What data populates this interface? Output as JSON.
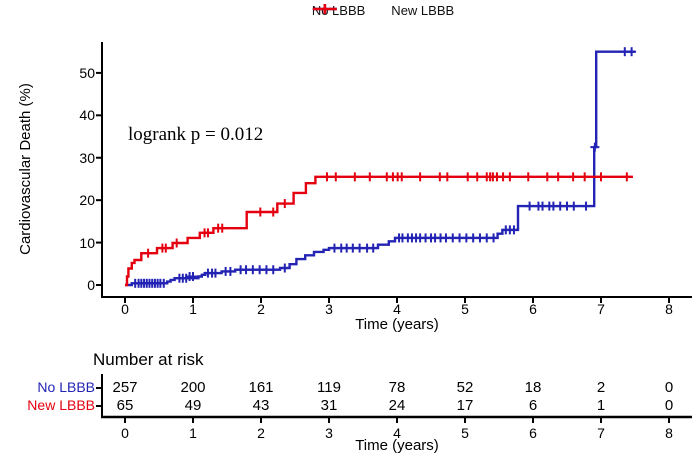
{
  "colors": {
    "no_lbbb": "#2323b4",
    "new_lbbb": "#e4000f",
    "axis": "#000000"
  },
  "legend": {
    "items": [
      {
        "label": "No LBBB",
        "color": "#2323b4"
      },
      {
        "label": "New LBBB",
        "color": "#e4000f"
      }
    ]
  },
  "annotation": {
    "text": "logrank p = 0.012"
  },
  "axes": {
    "y_label": "Cardiovascular Death (%)",
    "x_label": "Time (years)",
    "y_ticks": [
      0,
      10,
      20,
      30,
      40,
      50
    ],
    "x_ticks": [
      0,
      1,
      2,
      3,
      4,
      5,
      6,
      7,
      8
    ]
  },
  "risk_table": {
    "title": "Number at risk",
    "x_label": "Time (years)",
    "x_ticks": [
      0,
      1,
      2,
      3,
      4,
      5,
      6,
      7,
      8
    ],
    "rows": [
      {
        "label": "No LBBB",
        "color": "#2323b4",
        "values": [
          257,
          200,
          161,
          119,
          78,
          52,
          18,
          2,
          0
        ]
      },
      {
        "label": "New LBBB",
        "color": "#e4000f",
        "values": [
          65,
          49,
          43,
          31,
          24,
          17,
          6,
          1,
          0
        ]
      }
    ]
  },
  "chart_data": {
    "type": "line",
    "subtype": "kaplan-meier-step",
    "title": "",
    "xlabel": "Time (years)",
    "ylabel": "Cardiovascular Death (%)",
    "xlim": [
      0,
      8
    ],
    "ylim": [
      0,
      55
    ],
    "grid": false,
    "legend_position": "top",
    "series": [
      {
        "name": "No LBBB",
        "color": "#2323b4",
        "steps": [
          [
            0,
            0
          ],
          [
            0.1,
            0.4
          ],
          [
            0.62,
            0.8
          ],
          [
            0.67,
            1.2
          ],
          [
            0.73,
            1.6
          ],
          [
            1.08,
            2.0
          ],
          [
            1.13,
            2.4
          ],
          [
            1.18,
            2.8
          ],
          [
            1.42,
            3.2
          ],
          [
            1.62,
            3.6
          ],
          [
            2.28,
            4.0
          ],
          [
            2.42,
            4.9
          ],
          [
            2.52,
            6.1
          ],
          [
            2.65,
            7.0
          ],
          [
            2.78,
            7.8
          ],
          [
            2.92,
            8.3
          ],
          [
            3.0,
            8.7
          ],
          [
            3.72,
            9.5
          ],
          [
            3.88,
            10.3
          ],
          [
            3.97,
            11.1
          ],
          [
            5.48,
            12.1
          ],
          [
            5.55,
            13.0
          ],
          [
            5.78,
            18.6
          ],
          [
            6.9,
            32.5
          ],
          [
            6.93,
            55.0
          ],
          [
            7.5,
            55.0
          ]
        ],
        "censors": [
          [
            0.15,
            0.4
          ],
          [
            0.2,
            0.4
          ],
          [
            0.24,
            0.4
          ],
          [
            0.28,
            0.4
          ],
          [
            0.32,
            0.4
          ],
          [
            0.36,
            0.4
          ],
          [
            0.4,
            0.4
          ],
          [
            0.44,
            0.4
          ],
          [
            0.48,
            0.4
          ],
          [
            0.52,
            0.4
          ],
          [
            0.57,
            0.4
          ],
          [
            0.8,
            1.6
          ],
          [
            0.85,
            1.6
          ],
          [
            0.9,
            1.6
          ],
          [
            0.95,
            2.0
          ],
          [
            1.0,
            2.0
          ],
          [
            1.22,
            2.8
          ],
          [
            1.28,
            2.8
          ],
          [
            1.33,
            2.8
          ],
          [
            1.48,
            3.2
          ],
          [
            1.55,
            3.2
          ],
          [
            1.7,
            3.6
          ],
          [
            1.78,
            3.6
          ],
          [
            1.88,
            3.6
          ],
          [
            1.98,
            3.6
          ],
          [
            2.08,
            3.6
          ],
          [
            2.18,
            3.6
          ],
          [
            2.35,
            4.0
          ],
          [
            3.08,
            8.7
          ],
          [
            3.18,
            8.7
          ],
          [
            3.26,
            8.7
          ],
          [
            3.35,
            8.7
          ],
          [
            3.45,
            8.7
          ],
          [
            3.56,
            8.7
          ],
          [
            3.65,
            8.7
          ],
          [
            4.03,
            11.1
          ],
          [
            4.08,
            11.1
          ],
          [
            4.16,
            11.1
          ],
          [
            4.22,
            11.1
          ],
          [
            4.28,
            11.1
          ],
          [
            4.34,
            11.1
          ],
          [
            4.42,
            11.1
          ],
          [
            4.5,
            11.1
          ],
          [
            4.56,
            11.1
          ],
          [
            4.64,
            11.1
          ],
          [
            4.72,
            11.1
          ],
          [
            4.82,
            11.1
          ],
          [
            4.92,
            11.1
          ],
          [
            5.02,
            11.1
          ],
          [
            5.12,
            11.1
          ],
          [
            5.22,
            11.1
          ],
          [
            5.32,
            11.1
          ],
          [
            5.42,
            11.1
          ],
          [
            5.6,
            13.0
          ],
          [
            5.66,
            13.0
          ],
          [
            5.72,
            13.0
          ],
          [
            5.95,
            18.6
          ],
          [
            6.08,
            18.6
          ],
          [
            6.14,
            18.6
          ],
          [
            6.24,
            18.6
          ],
          [
            6.3,
            18.6
          ],
          [
            6.4,
            18.6
          ],
          [
            6.5,
            18.6
          ],
          [
            6.6,
            18.6
          ],
          [
            6.78,
            18.6
          ],
          [
            6.91,
            32.5
          ],
          [
            7.35,
            55.0
          ],
          [
            7.45,
            55.0
          ]
        ]
      },
      {
        "name": "New LBBB",
        "color": "#e4000f",
        "steps": [
          [
            0,
            0
          ],
          [
            0.03,
            2.0
          ],
          [
            0.05,
            3.9
          ],
          [
            0.1,
            5.2
          ],
          [
            0.14,
            5.9
          ],
          [
            0.24,
            7.5
          ],
          [
            0.47,
            8.7
          ],
          [
            0.7,
            9.9
          ],
          [
            0.92,
            11.1
          ],
          [
            1.1,
            12.3
          ],
          [
            1.3,
            13.4
          ],
          [
            1.79,
            17.2
          ],
          [
            2.24,
            19.2
          ],
          [
            2.48,
            21.7
          ],
          [
            2.66,
            24.0
          ],
          [
            2.8,
            25.5
          ],
          [
            7.47,
            25.5
          ]
        ],
        "censors": [
          [
            0.34,
            7.5
          ],
          [
            0.55,
            8.7
          ],
          [
            0.6,
            8.7
          ],
          [
            0.76,
            9.9
          ],
          [
            1.17,
            12.3
          ],
          [
            1.22,
            12.3
          ],
          [
            1.37,
            13.4
          ],
          [
            1.43,
            13.4
          ],
          [
            1.99,
            17.2
          ],
          [
            2.18,
            17.2
          ],
          [
            2.35,
            19.2
          ],
          [
            2.97,
            25.5
          ],
          [
            3.1,
            25.5
          ],
          [
            3.38,
            25.5
          ],
          [
            3.6,
            25.5
          ],
          [
            3.85,
            25.5
          ],
          [
            3.94,
            25.5
          ],
          [
            4.01,
            25.5
          ],
          [
            4.07,
            25.5
          ],
          [
            4.34,
            25.5
          ],
          [
            4.63,
            25.5
          ],
          [
            4.74,
            25.5
          ],
          [
            5.04,
            25.5
          ],
          [
            5.18,
            25.5
          ],
          [
            5.32,
            25.5
          ],
          [
            5.37,
            25.5
          ],
          [
            5.41,
            25.5
          ],
          [
            5.47,
            25.5
          ],
          [
            5.56,
            25.5
          ],
          [
            5.66,
            25.5
          ],
          [
            5.93,
            25.5
          ],
          [
            6.21,
            25.5
          ],
          [
            6.37,
            25.5
          ],
          [
            6.59,
            25.5
          ],
          [
            6.76,
            25.5
          ],
          [
            7.0,
            25.5
          ],
          [
            7.38,
            25.5
          ]
        ]
      }
    ],
    "annotations": [
      {
        "text": "logrank p = 0.012",
        "x": 0.2,
        "y": 33
      }
    ],
    "risk_table": {
      "title": "Number at risk",
      "times": [
        0,
        1,
        2,
        3,
        4,
        5,
        6,
        7,
        8
      ],
      "No LBBB": [
        257,
        200,
        161,
        119,
        78,
        52,
        18,
        2,
        0
      ],
      "New LBBB": [
        65,
        49,
        43,
        31,
        24,
        17,
        6,
        1,
        0
      ]
    }
  }
}
